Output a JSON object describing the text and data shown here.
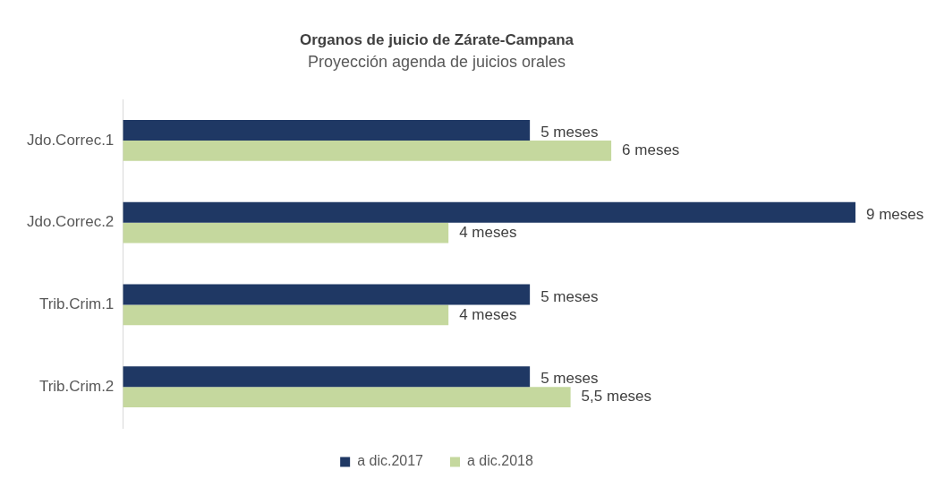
{
  "chart_data": {
    "type": "bar",
    "orientation": "horizontal",
    "title": "Organos de juicio de Zárate-Campana",
    "subtitle": "Proyección agenda de juicios orales",
    "categories": [
      "Jdo.Correc.1",
      "Jdo.Correc.2",
      "Trib.Crim.1",
      "Trib.Crim.2"
    ],
    "series": [
      {
        "name": "a dic.2017",
        "color": "#1f3864",
        "values": [
          5,
          9,
          5,
          5
        ],
        "value_labels": [
          "5 meses",
          "9 meses",
          "5 meses",
          "5 meses"
        ]
      },
      {
        "name": "a dic.2018",
        "color": "#c5d89e",
        "values": [
          6,
          4,
          4,
          5.5
        ],
        "value_labels": [
          "6 meses",
          "4 meses",
          "4 meses",
          "5,5 meses"
        ]
      }
    ],
    "legend": "bottom"
  }
}
